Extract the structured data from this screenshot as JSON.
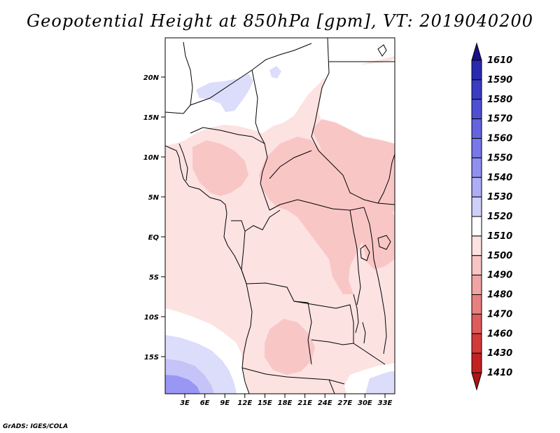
{
  "title": "Geopotential Height at 850hPa [gpm], VT: 2019040200",
  "footer": "GrADS: IGES/COLA",
  "lat_ticks": [
    "20N",
    "15N",
    "10N",
    "5N",
    "EQ",
    "5S",
    "10S",
    "15S"
  ],
  "lon_ticks": [
    "3E",
    "6E",
    "9E",
    "12E",
    "15E",
    "18E",
    "21E",
    "24E",
    "27E",
    "30E",
    "33E"
  ],
  "colorbar": {
    "labels": [
      "1610",
      "1590",
      "1580",
      "1570",
      "1560",
      "1550",
      "1540",
      "1530",
      "1520",
      "1510",
      "1500",
      "1490",
      "1480",
      "1470",
      "1460",
      "1430",
      "1410"
    ],
    "colors": [
      "#1a0f8c",
      "#2a2ab0",
      "#3b3bc4",
      "#4f4fd4",
      "#6464e0",
      "#7878e8",
      "#9090f0",
      "#aeaef6",
      "#cfcffa",
      "#ffffff",
      "#fde2e2",
      "#f8c4c4",
      "#f0a4a4",
      "#e88080",
      "#df5c5c",
      "#d43a3a",
      "#c42222",
      "#ae1414"
    ]
  },
  "colors": {
    "high_blue": "#9a96f4",
    "mid_blue": "#c4c4f8",
    "light_blue": "#dcdcfb",
    "pale_pink": "#fde2e2",
    "mid_pink": "#f9c6c6",
    "border": "#000000"
  }
}
